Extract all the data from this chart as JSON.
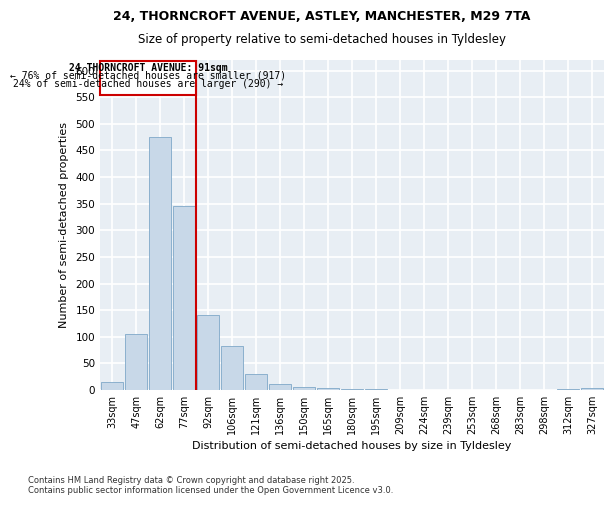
{
  "title1": "24, THORNCROFT AVENUE, ASTLEY, MANCHESTER, M29 7TA",
  "title2": "Size of property relative to semi-detached houses in Tyldesley",
  "xlabel": "Distribution of semi-detached houses by size in Tyldesley",
  "ylabel": "Number of semi-detached properties",
  "footnote1": "Contains HM Land Registry data © Crown copyright and database right 2025.",
  "footnote2": "Contains public sector information licensed under the Open Government Licence v3.0.",
  "categories": [
    "33sqm",
    "47sqm",
    "62sqm",
    "77sqm",
    "92sqm",
    "106sqm",
    "121sqm",
    "136sqm",
    "150sqm",
    "165sqm",
    "180sqm",
    "195sqm",
    "209sqm",
    "224sqm",
    "239sqm",
    "253sqm",
    "268sqm",
    "283sqm",
    "298sqm",
    "312sqm",
    "327sqm"
  ],
  "values": [
    15,
    105,
    475,
    345,
    140,
    82,
    30,
    12,
    5,
    3,
    1,
    1,
    0,
    0,
    0,
    0,
    0,
    0,
    0,
    2,
    3
  ],
  "bar_color": "#c8d8e8",
  "bar_edge_color": "#7fa8c8",
  "vline_color": "#cc0000",
  "annotation_title": "24 THORNCROFT AVENUE: 91sqm",
  "annotation_line1": "← 76% of semi-detached houses are smaller (917)",
  "annotation_line2": "24% of semi-detached houses are larger (290) →",
  "annotation_color": "#cc0000",
  "ylim": [
    0,
    620
  ],
  "yticks": [
    0,
    50,
    100,
    150,
    200,
    250,
    300,
    350,
    400,
    450,
    500,
    550,
    600
  ],
  "background_color": "#e8eef4",
  "grid_color": "#ffffff"
}
